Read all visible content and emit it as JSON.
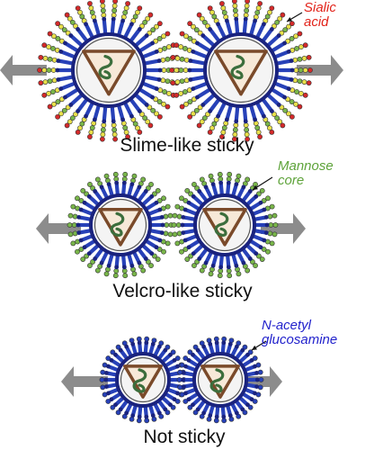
{
  "panels": [
    {
      "caption": "Slime-like sticky",
      "annotation": [
        "Sialic",
        "acid"
      ],
      "label_color": "#e2231a"
    },
    {
      "caption": "Velcro-like sticky",
      "annotation": [
        "Mannose",
        "core"
      ],
      "label_color": "#5ea33a"
    },
    {
      "caption": "Not sticky",
      "annotation": [
        "N-acetyl",
        "glucosamine"
      ],
      "label_color": "#2222cc"
    }
  ],
  "colors": {
    "arrow": "#8c8c8c",
    "membrane": "#1a237e",
    "spike_stem": "#2741b8",
    "layer_yellow": "#e8e04a",
    "layer_green": "#79b64a",
    "layer_red": "#d42a2a",
    "capsid_border": "#7a4a2a",
    "genome": "#3c6e3c"
  }
}
